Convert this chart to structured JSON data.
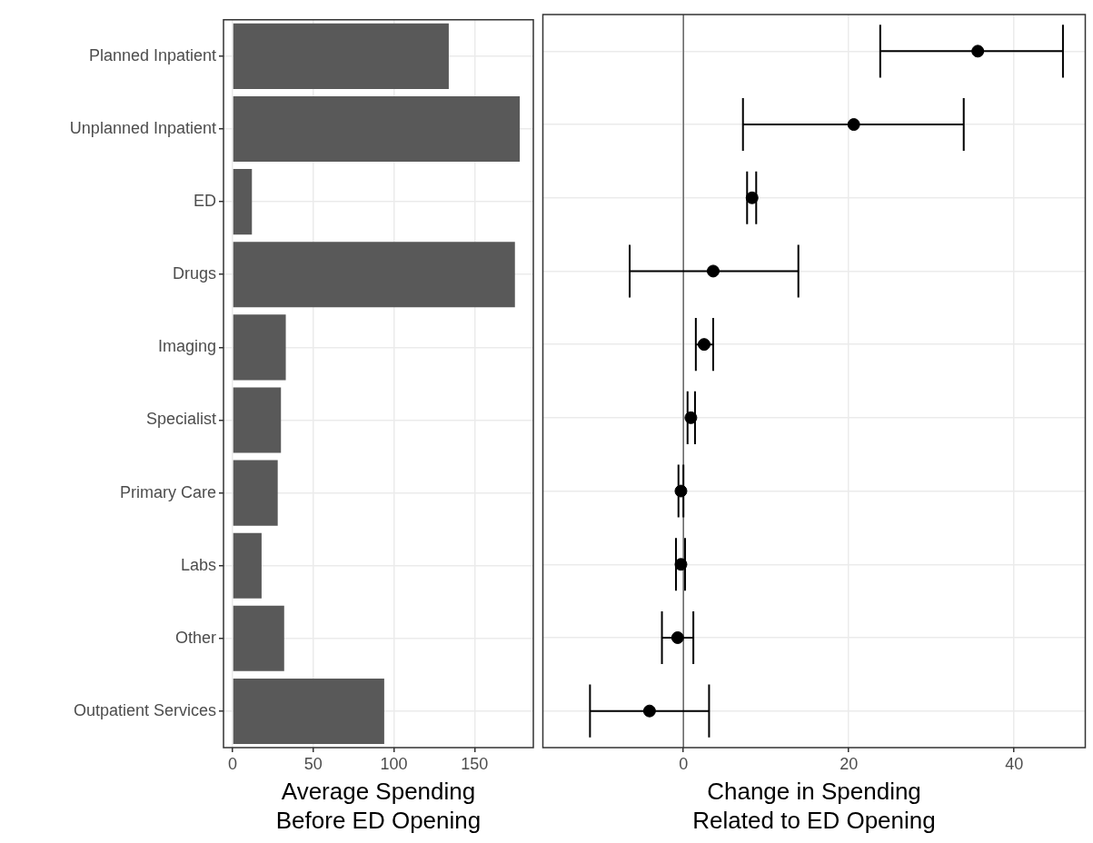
{
  "chart_data": [
    {
      "type": "bar",
      "orientation": "horizontal",
      "categories": [
        "Planned Inpatient",
        "Unplanned Inpatient",
        "ED",
        "Drugs",
        "Imaging",
        "Specialist",
        "Primary Care",
        "Labs",
        "Other",
        "Outpatient Services"
      ],
      "values": [
        134,
        178,
        12,
        175,
        33,
        30,
        28,
        18,
        32,
        94
      ],
      "color": "#595959",
      "xlabel": "Average Spending\nBefore ED Opening",
      "xlim": [
        -5.6,
        186.4
      ],
      "xticks": [
        0,
        50,
        100,
        150
      ],
      "grid": true,
      "legend": false
    },
    {
      "type": "scatter",
      "orientation": "horizontal",
      "categories": [
        null,
        null,
        null,
        null,
        null,
        null,
        null,
        null,
        null,
        null
      ],
      "values": [
        35.6,
        20.6,
        8.3,
        3.6,
        2.5,
        0.9,
        -0.3,
        -0.3,
        -0.7,
        -4.1
      ],
      "errors": [
        [
          23.8,
          45.9
        ],
        [
          7.2,
          33.9
        ],
        [
          7.7,
          8.8
        ],
        [
          -6.5,
          13.9
        ],
        [
          1.5,
          3.6
        ],
        [
          0.5,
          1.4
        ],
        [
          -0.6,
          0
        ],
        [
          -0.9,
          0.2
        ],
        [
          -2.6,
          1.2
        ],
        [
          -11.3,
          3.1
        ]
      ],
      "color": "#000000",
      "marker": "circle",
      "xlabel": "Change in Spending\nRelated to ED Opening",
      "xlim": [
        -17,
        48.6
      ],
      "xticks": [
        0,
        20,
        40
      ],
      "grid": true,
      "legend": false,
      "tick_labels": "x",
      "ref_lines": [
        {
          "axis": "x",
          "value": 0,
          "color": "#666666"
        }
      ]
    }
  ]
}
